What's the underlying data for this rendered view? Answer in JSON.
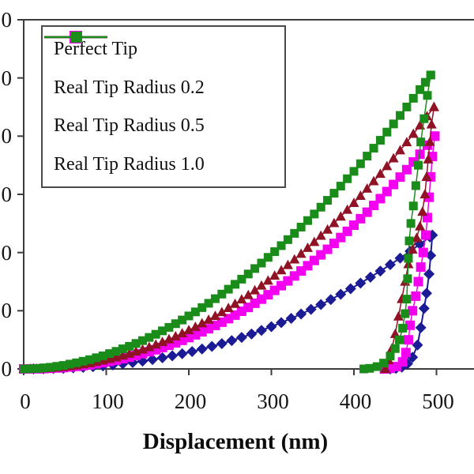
{
  "figure_name": "nanoindentation load-displacement curves",
  "chart_data": {
    "type": "line",
    "title": "",
    "xlabel": "Displacement (nm)",
    "ylabel": "",
    "legend_position": "top-left",
    "grid": false,
    "x_axis": {
      "min": 0,
      "max": 545,
      "ticks": [
        {
          "value": 0,
          "label": "0"
        },
        {
          "value": 100,
          "label": "100"
        },
        {
          "value": 200,
          "label": "200"
        },
        {
          "value": 300,
          "label": "300"
        },
        {
          "value": 400,
          "label": "400"
        },
        {
          "value": 500,
          "label": "500"
        }
      ]
    },
    "y_axis": {
      "min": 0,
      "max": 6,
      "tick_values": [
        0,
        1,
        2,
        3,
        4,
        5,
        6
      ],
      "tick_labels": [
        "0",
        "0",
        "0",
        "0",
        "0",
        "0",
        "0"
      ],
      "labels_cropped": true
    },
    "series": [
      {
        "name": "Perfect Tip",
        "color": "#1B1B96",
        "marker": "diamond",
        "marker_size": 14,
        "line_width": 2,
        "dense_markers": false,
        "loading": [
          [
            0,
            0
          ],
          [
            12,
            0.0004
          ],
          [
            24,
            0.002
          ],
          [
            36,
            0.006
          ],
          [
            48,
            0.011
          ],
          [
            60,
            0.018
          ],
          [
            72,
            0.027
          ],
          [
            84,
            0.039
          ],
          [
            96,
            0.053
          ],
          [
            108,
            0.069
          ],
          [
            120,
            0.088
          ],
          [
            132,
            0.11
          ],
          [
            144,
            0.134
          ],
          [
            156,
            0.161
          ],
          [
            168,
            0.192
          ],
          [
            180,
            0.225
          ],
          [
            192,
            0.261
          ],
          [
            204,
            0.299
          ],
          [
            216,
            0.342
          ],
          [
            228,
            0.387
          ],
          [
            240,
            0.435
          ],
          [
            252,
            0.487
          ],
          [
            264,
            0.542
          ],
          [
            276,
            0.6
          ],
          [
            288,
            0.662
          ],
          [
            300,
            0.727
          ],
          [
            312,
            0.796
          ],
          [
            324,
            0.868
          ],
          [
            336,
            0.943
          ],
          [
            348,
            1.023
          ],
          [
            360,
            1.106
          ],
          [
            372,
            1.192
          ],
          [
            384,
            1.283
          ],
          [
            396,
            1.377
          ],
          [
            408,
            1.475
          ],
          [
            420,
            1.576
          ],
          [
            432,
            1.682
          ],
          [
            444,
            1.791
          ],
          [
            456,
            1.904
          ],
          [
            468,
            2.022
          ],
          [
            480,
            2.143
          ],
          [
            492,
            2.268
          ],
          [
            495,
            2.3
          ]
        ],
        "unloading": [
          [
            495,
            2.3
          ],
          [
            493,
            1.95
          ],
          [
            491,
            1.63
          ],
          [
            488,
            1.3
          ],
          [
            485,
            1.04
          ],
          [
            481,
            0.71
          ],
          [
            477,
            0.41
          ],
          [
            471,
            0.2
          ],
          [
            465,
            0.09
          ],
          [
            458,
            0.03
          ],
          [
            451,
            0.01
          ],
          [
            444,
            0.0
          ]
        ]
      },
      {
        "name": "Real Tip Radius 0.2",
        "color": "#F400F0",
        "marker": "square",
        "marker_size": 12,
        "line_width": 1.5,
        "dense_markers": true,
        "loading": [
          [
            0,
            0
          ],
          [
            16,
            0.002
          ],
          [
            32,
            0.01
          ],
          [
            48,
            0.023
          ],
          [
            64,
            0.044
          ],
          [
            80,
            0.071
          ],
          [
            96,
            0.107
          ],
          [
            112,
            0.15
          ],
          [
            128,
            0.201
          ],
          [
            144,
            0.261
          ],
          [
            160,
            0.329
          ],
          [
            176,
            0.406
          ],
          [
            192,
            0.491
          ],
          [
            208,
            0.586
          ],
          [
            224,
            0.69
          ],
          [
            240,
            0.803
          ],
          [
            256,
            0.925
          ],
          [
            272,
            1.057
          ],
          [
            288,
            1.199
          ],
          [
            304,
            1.35
          ],
          [
            320,
            1.512
          ],
          [
            336,
            1.683
          ],
          [
            352,
            1.864
          ],
          [
            368,
            2.056
          ],
          [
            384,
            2.258
          ],
          [
            400,
            2.47
          ],
          [
            416,
            2.693
          ],
          [
            432,
            2.926
          ],
          [
            448,
            3.169
          ],
          [
            464,
            3.424
          ],
          [
            480,
            3.689
          ],
          [
            498,
            4.0
          ]
        ],
        "unloading": [
          [
            498,
            4.0
          ],
          [
            495,
            3.65
          ],
          [
            493,
            3.3
          ],
          [
            491,
            2.95
          ],
          [
            489,
            2.6
          ],
          [
            487,
            2.3
          ],
          [
            484,
            2.0
          ],
          [
            481,
            1.75
          ],
          [
            478,
            1.5
          ],
          [
            475,
            1.25
          ],
          [
            471,
            1.0
          ],
          [
            468,
            0.75
          ],
          [
            466,
            0.5
          ],
          [
            463,
            0.28
          ],
          [
            459,
            0.12
          ],
          [
            452,
            0.04
          ],
          [
            444,
            0.01
          ],
          [
            437,
            0.0
          ]
        ]
      },
      {
        "name": "Real Tip Radius 0.5",
        "color": "#901225",
        "marker": "triangle",
        "marker_size": 13,
        "line_width": 1.5,
        "dense_markers": true,
        "loading": [
          [
            0,
            0
          ],
          [
            16,
            0.003
          ],
          [
            32,
            0.014
          ],
          [
            48,
            0.033
          ],
          [
            64,
            0.061
          ],
          [
            80,
            0.097
          ],
          [
            96,
            0.143
          ],
          [
            112,
            0.197
          ],
          [
            128,
            0.261
          ],
          [
            144,
            0.334
          ],
          [
            160,
            0.416
          ],
          [
            176,
            0.509
          ],
          [
            192,
            0.611
          ],
          [
            208,
            0.722
          ],
          [
            224,
            0.844
          ],
          [
            240,
            0.975
          ],
          [
            256,
            1.117
          ],
          [
            272,
            1.269
          ],
          [
            288,
            1.431
          ],
          [
            304,
            1.603
          ],
          [
            320,
            1.785
          ],
          [
            336,
            1.978
          ],
          [
            352,
            2.181
          ],
          [
            368,
            2.394
          ],
          [
            384,
            2.618
          ],
          [
            400,
            2.852
          ],
          [
            416,
            3.097
          ],
          [
            432,
            3.352
          ],
          [
            448,
            3.618
          ],
          [
            464,
            3.895
          ],
          [
            480,
            4.183
          ],
          [
            497,
            4.5
          ]
        ],
        "unloading": [
          [
            497,
            4.5
          ],
          [
            494,
            4.2
          ],
          [
            492,
            3.9
          ],
          [
            490,
            3.6
          ],
          [
            488,
            3.3
          ],
          [
            486,
            3.0
          ],
          [
            483,
            2.7
          ],
          [
            480,
            2.45
          ],
          [
            476,
            2.25
          ],
          [
            471,
            2.05
          ],
          [
            466,
            1.8
          ],
          [
            462,
            1.5
          ],
          [
            458,
            1.2
          ],
          [
            454,
            0.9
          ],
          [
            450,
            0.6
          ],
          [
            446,
            0.35
          ],
          [
            442,
            0.15
          ],
          [
            438,
            0.0
          ]
        ]
      },
      {
        "name": "Real Tip Radius 1.0",
        "color": "#1A8C1A",
        "marker": "square",
        "marker_size": 11,
        "line_width": 1.5,
        "dense_markers": true,
        "loading": [
          [
            0,
            0
          ],
          [
            16,
            0.007
          ],
          [
            32,
            0.028
          ],
          [
            48,
            0.06
          ],
          [
            64,
            0.105
          ],
          [
            80,
            0.159
          ],
          [
            96,
            0.225
          ],
          [
            112,
            0.302
          ],
          [
            128,
            0.389
          ],
          [
            144,
            0.487
          ],
          [
            160,
            0.595
          ],
          [
            176,
            0.714
          ],
          [
            192,
            0.841
          ],
          [
            208,
            0.98
          ],
          [
            224,
            1.128
          ],
          [
            240,
            1.286
          ],
          [
            256,
            1.454
          ],
          [
            272,
            1.631
          ],
          [
            288,
            1.819
          ],
          [
            304,
            2.015
          ],
          [
            320,
            2.222
          ],
          [
            336,
            2.437
          ],
          [
            352,
            2.662
          ],
          [
            368,
            2.897
          ],
          [
            384,
            3.141
          ],
          [
            400,
            3.395
          ],
          [
            416,
            3.657
          ],
          [
            432,
            3.929
          ],
          [
            448,
            4.21
          ],
          [
            464,
            4.501
          ],
          [
            480,
            4.8
          ],
          [
            493,
            5.05
          ]
        ],
        "unloading": [
          [
            493,
            5.05
          ],
          [
            489,
            4.7
          ],
          [
            485,
            4.3
          ],
          [
            481,
            3.9
          ],
          [
            478,
            3.5
          ],
          [
            475,
            3.15
          ],
          [
            472,
            2.8
          ],
          [
            469,
            2.5
          ],
          [
            467,
            2.2
          ],
          [
            466,
            1.9
          ],
          [
            465,
            1.55
          ],
          [
            464,
            1.2
          ],
          [
            462,
            0.95
          ],
          [
            459,
            0.7
          ],
          [
            455,
            0.5
          ],
          [
            450,
            0.35
          ],
          [
            444,
            0.22
          ],
          [
            436,
            0.1
          ],
          [
            428,
            0.04
          ],
          [
            419,
            0.01
          ],
          [
            412,
            0.0
          ]
        ]
      }
    ]
  }
}
